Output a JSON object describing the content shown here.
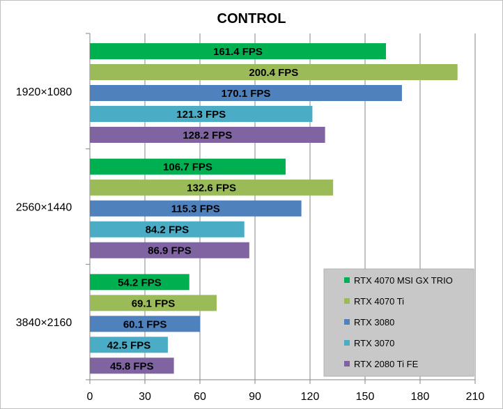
{
  "chart_data": {
    "type": "bar",
    "orientation": "horizontal",
    "title": "CONTROL",
    "xlabel": "",
    "ylabel": "",
    "xlim": [
      0,
      210
    ],
    "x_ticks": [
      0,
      30,
      60,
      90,
      120,
      150,
      180,
      210
    ],
    "grid": "vertical major gridlines",
    "legend_position": "bottom-right",
    "value_suffix": " FPS",
    "categories": [
      "1920×1080",
      "2560×1440",
      "3840×2160"
    ],
    "series": [
      {
        "name": "RTX 4070 MSI GX TRIO",
        "color": "#00b050",
        "values": [
          161.4,
          106.7,
          54.2
        ]
      },
      {
        "name": "RTX 4070 Ti",
        "color": "#9bbb59",
        "values": [
          200.4,
          132.6,
          69.1
        ]
      },
      {
        "name": "RTX 3080",
        "color": "#4f81bd",
        "values": [
          170.1,
          115.3,
          60.1
        ]
      },
      {
        "name": "RTX 3070",
        "color": "#4bacc6",
        "values": [
          121.3,
          84.2,
          42.5
        ]
      },
      {
        "name": "RTX 2080 Ti FE",
        "color": "#8064a2",
        "values": [
          128.2,
          86.9,
          45.8
        ]
      }
    ]
  }
}
